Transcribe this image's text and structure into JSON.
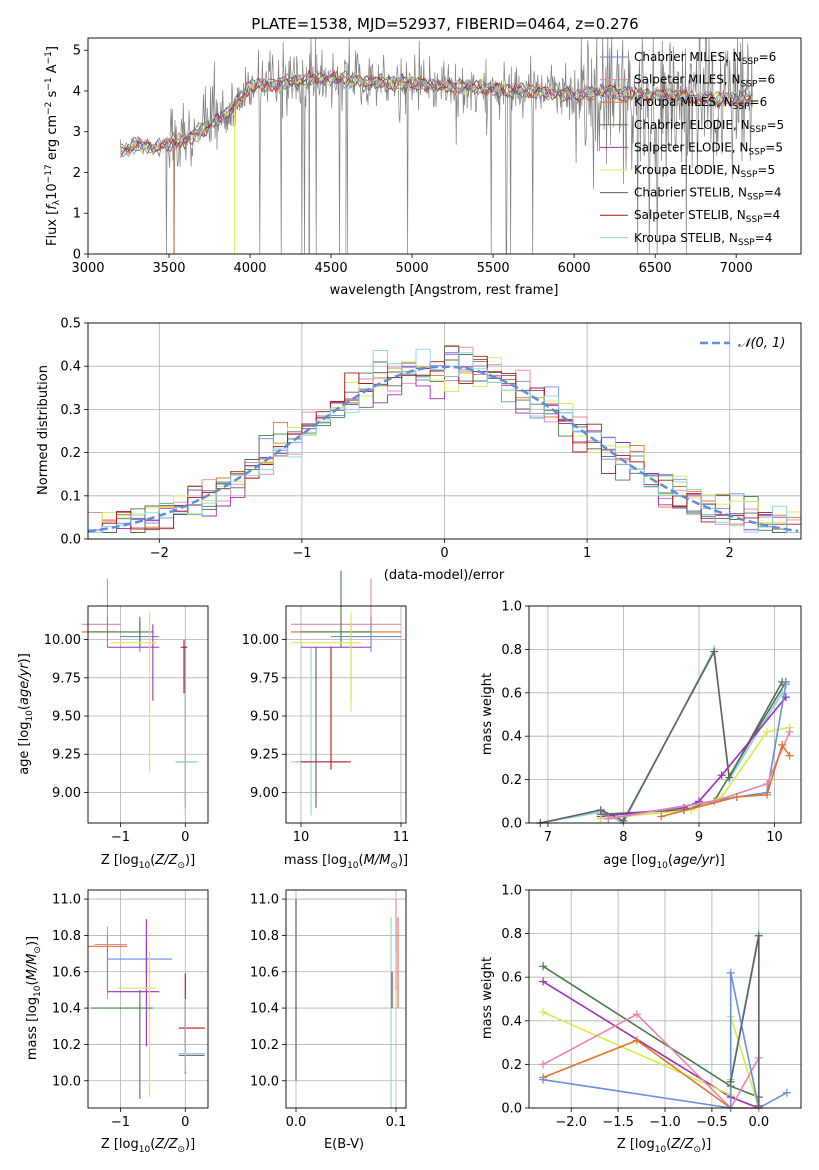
{
  "figure": {
    "title": "PLATE=1538, MJD=52937, FIBERID=0464, z=0.276"
  },
  "colors": {
    "chabrier_miles": "#6a8ee0",
    "salpeter_miles": "#e884b0",
    "kroupa_miles": "#e07428",
    "chabrier_elodie": "#4a7a4a",
    "salpeter_elodie": "#a030b8",
    "kroupa_elodie": "#d4ec50",
    "chabrier_stelib": "#606060",
    "salpeter_stelib": "#b01818",
    "kroupa_stelib": "#88d4de",
    "data_gray": "#808080",
    "grid": "#b0b0b0",
    "gauss": "#5b8fd9"
  },
  "chart_data": [
    {
      "id": "spectrum",
      "type": "line",
      "xlabel": "wavelength [Angstrom, rest frame]",
      "ylabel": "Flux [f$_\\lambda$10$^{-17}$ erg cm$^{-2}$ s$^{-1}$ A$^{-1}$]",
      "xlim": [
        3000,
        7400
      ],
      "ylim": [
        0,
        5.3
      ],
      "xticks": [
        3000,
        3500,
        4000,
        4500,
        5000,
        5500,
        6000,
        6500,
        7000
      ],
      "yticks": [
        0,
        1,
        2,
        3,
        4,
        5
      ],
      "grid": false,
      "legend_position": "right",
      "series": [
        {
          "name": "Chabrier MILES, N$_{SSP}$=6",
          "label_main": "Chabrier MILES, N",
          "label_sub": "SSP",
          "label_tail": "=6",
          "color_key": "chabrier_miles"
        },
        {
          "name": "Salpeter MILES, N$_{SSP}$=6",
          "label_main": "Salpeter MILES, N",
          "label_sub": "SSP",
          "label_tail": "=6",
          "color_key": "salpeter_miles"
        },
        {
          "name": "Kroupa MILES, N$_{SSP}$=6",
          "label_main": "Kroupa MILES, N",
          "label_sub": "SSP",
          "label_tail": "=6",
          "color_key": "kroupa_miles"
        },
        {
          "name": "Chabrier ELODIE, N$_{SSP}$=5",
          "label_main": "Chabrier ELODIE, N",
          "label_sub": "SSP",
          "label_tail": "=5",
          "color_key": "chabrier_elodie"
        },
        {
          "name": "Salpeter ELODIE, N$_{SSP}$=5",
          "label_main": "Salpeter ELODIE, N",
          "label_sub": "SSP",
          "label_tail": "=5",
          "color_key": "salpeter_elodie"
        },
        {
          "name": "Kroupa ELODIE, N$_{SSP}$=5",
          "label_main": "Kroupa ELODIE, N",
          "label_sub": "SSP",
          "label_tail": "=5",
          "color_key": "kroupa_elodie"
        },
        {
          "name": "Chabrier STELIB, N$_{SSP}$=4",
          "label_main": "Chabrier STELIB, N",
          "label_sub": "SSP",
          "label_tail": "=4",
          "color_key": "chabrier_stelib"
        },
        {
          "name": "Salpeter STELIB, N$_{SSP}$=4",
          "label_main": "Salpeter STELIB, N",
          "label_sub": "SSP",
          "label_tail": "=4",
          "color_key": "salpeter_stelib"
        },
        {
          "name": "Kroupa STELIB, N$_{SSP}$=4",
          "label_main": "Kroupa STELIB, N",
          "label_sub": "SSP",
          "label_tail": "=4",
          "color_key": "kroupa_stelib"
        }
      ],
      "spectrum_x": [
        3200,
        3300,
        3400,
        3500,
        3600,
        3700,
        3800,
        3900,
        4000,
        4200,
        4400,
        4600,
        4800,
        5000,
        5200,
        5400,
        5600,
        5800,
        6000,
        6200,
        6400,
        6600,
        6800,
        7000,
        7100
      ],
      "spectrum_y": [
        2.5,
        2.7,
        2.6,
        2.7,
        2.8,
        3.0,
        3.3,
        3.6,
        4.1,
        4.2,
        4.3,
        4.3,
        4.2,
        4.2,
        4.1,
        4.1,
        4.0,
        4.0,
        3.9,
        4.0,
        3.9,
        3.9,
        3.8,
        3.8,
        3.8
      ]
    },
    {
      "id": "residuals",
      "type": "step",
      "xlabel": "(data-model)/error",
      "ylabel": "Normed distribution",
      "xlim": [
        -2.5,
        2.5
      ],
      "ylim": [
        0,
        0.5
      ],
      "xticks": [
        -2,
        -1,
        0,
        1,
        2
      ],
      "yticks": [
        0.0,
        0.1,
        0.2,
        0.3,
        0.4,
        0.5
      ],
      "grid": true,
      "legend": [
        {
          "name": "$\\mathcal{N}(0,1)$",
          "label": "𝒩(0, 1)"
        }
      ],
      "legend_position": "top-right"
    },
    {
      "id": "age_vs_Z",
      "type": "errorbar",
      "xlabel": "Z [log$_{10}$(Z/Z$_\\odot$)]",
      "ylabel": "age  [log$_{10}$(age/yr)]",
      "xlim": [
        -1.5,
        0.35
      ],
      "ylim": [
        8.8,
        10.22
      ],
      "xticks": [
        -1,
        0
      ],
      "yticks": [
        9.0,
        9.25,
        9.5,
        9.75,
        10.0
      ],
      "grid": true
    },
    {
      "id": "age_vs_mass",
      "type": "errorbar",
      "xlabel": "mass [log$_{10}$(M/M$_\\odot$)]",
      "ylabel": "",
      "xlim": [
        9.85,
        11.05
      ],
      "ylim": [
        8.8,
        10.22
      ],
      "xticks": [
        10,
        11
      ],
      "yticks": [
        9.0,
        9.25,
        9.5,
        9.75,
        10.0
      ],
      "grid": true
    },
    {
      "id": "weight_vs_age",
      "type": "line",
      "xlabel": "age  [log$_{10}$(age/yr)]",
      "ylabel": "mass weight",
      "xlim": [
        6.75,
        10.35
      ],
      "ylim": [
        0,
        1.0
      ],
      "xticks": [
        7,
        8,
        9,
        10
      ],
      "yticks": [
        0.0,
        0.2,
        0.4,
        0.6,
        0.8,
        1.0
      ],
      "grid": true
    },
    {
      "id": "mass_vs_Z",
      "type": "errorbar",
      "xlabel": "Z [log$_{10}$(Z/Z$_\\odot$)]",
      "ylabel": "mass [log$_{10}$(M/M$_\\odot$)]",
      "xlim": [
        -1.5,
        0.35
      ],
      "ylim": [
        9.85,
        11.05
      ],
      "xticks": [
        -1,
        0
      ],
      "yticks": [
        10.0,
        10.2,
        10.4,
        10.6,
        10.8,
        11.0
      ],
      "grid": true
    },
    {
      "id": "mass_vs_ebv",
      "type": "errorbar",
      "xlabel": "E(B-V)",
      "ylabel": "",
      "xlim": [
        -0.01,
        0.11
      ],
      "ylim": [
        9.85,
        11.05
      ],
      "xticks": [
        0.0,
        0.1
      ],
      "yticks": [
        10.0,
        10.2,
        10.4,
        10.6,
        10.8,
        11.0
      ],
      "grid": true
    },
    {
      "id": "weight_vs_Z",
      "type": "line",
      "xlabel": "Z [log$_{10}$(Z/Z$_\\odot$)]",
      "ylabel": "mass weight",
      "xlim": [
        -2.45,
        0.45
      ],
      "ylim": [
        0,
        1.0
      ],
      "xticks": [
        -2.0,
        -1.5,
        -1.0,
        -0.5,
        0.0
      ],
      "yticks": [
        0.0,
        0.2,
        0.4,
        0.6,
        0.8,
        1.0
      ],
      "grid": true
    }
  ],
  "axis_labels": {
    "spectrum_x": "wavelength [Angstrom, rest frame]",
    "residual_x": "(data-model)/error",
    "residual_y": "Normed distribution",
    "weight_y": "mass weight",
    "ebv_x": "E(B-V)"
  }
}
